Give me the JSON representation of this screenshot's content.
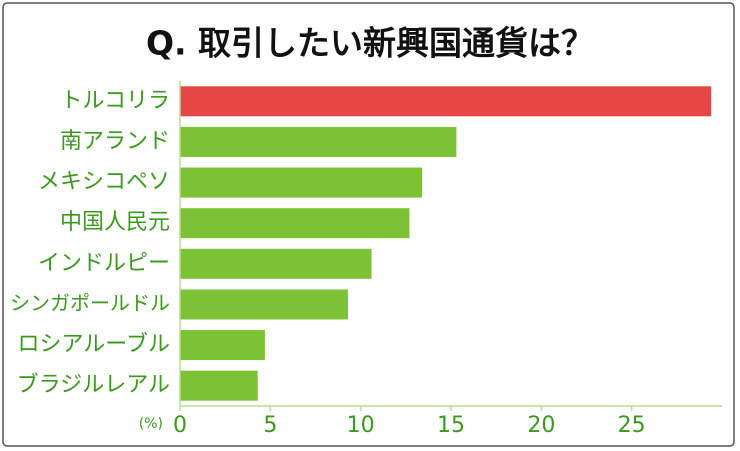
{
  "chart_data": {
    "type": "barh",
    "title": "Q. 取引したい新興国通貨は？",
    "categories": [
      "トルコリラ",
      "南アランド",
      "メキシコペソ",
      "中国人民元",
      "インドルピー",
      "シンガポールドル",
      "ロシアルーブル",
      "ブラジルレアル"
    ],
    "values": [
      29.4,
      15.3,
      13.4,
      12.7,
      10.6,
      9.3,
      4.7,
      4.3
    ],
    "colors": [
      "#e64545",
      "#7cc234",
      "#7cc234",
      "#7cc234",
      "#7cc234",
      "#7cc234",
      "#7cc234",
      "#7cc234"
    ],
    "x_unit": "(%)",
    "xlim": [
      0,
      30
    ],
    "xticks": [
      0,
      5,
      10,
      15,
      20,
      25
    ]
  }
}
